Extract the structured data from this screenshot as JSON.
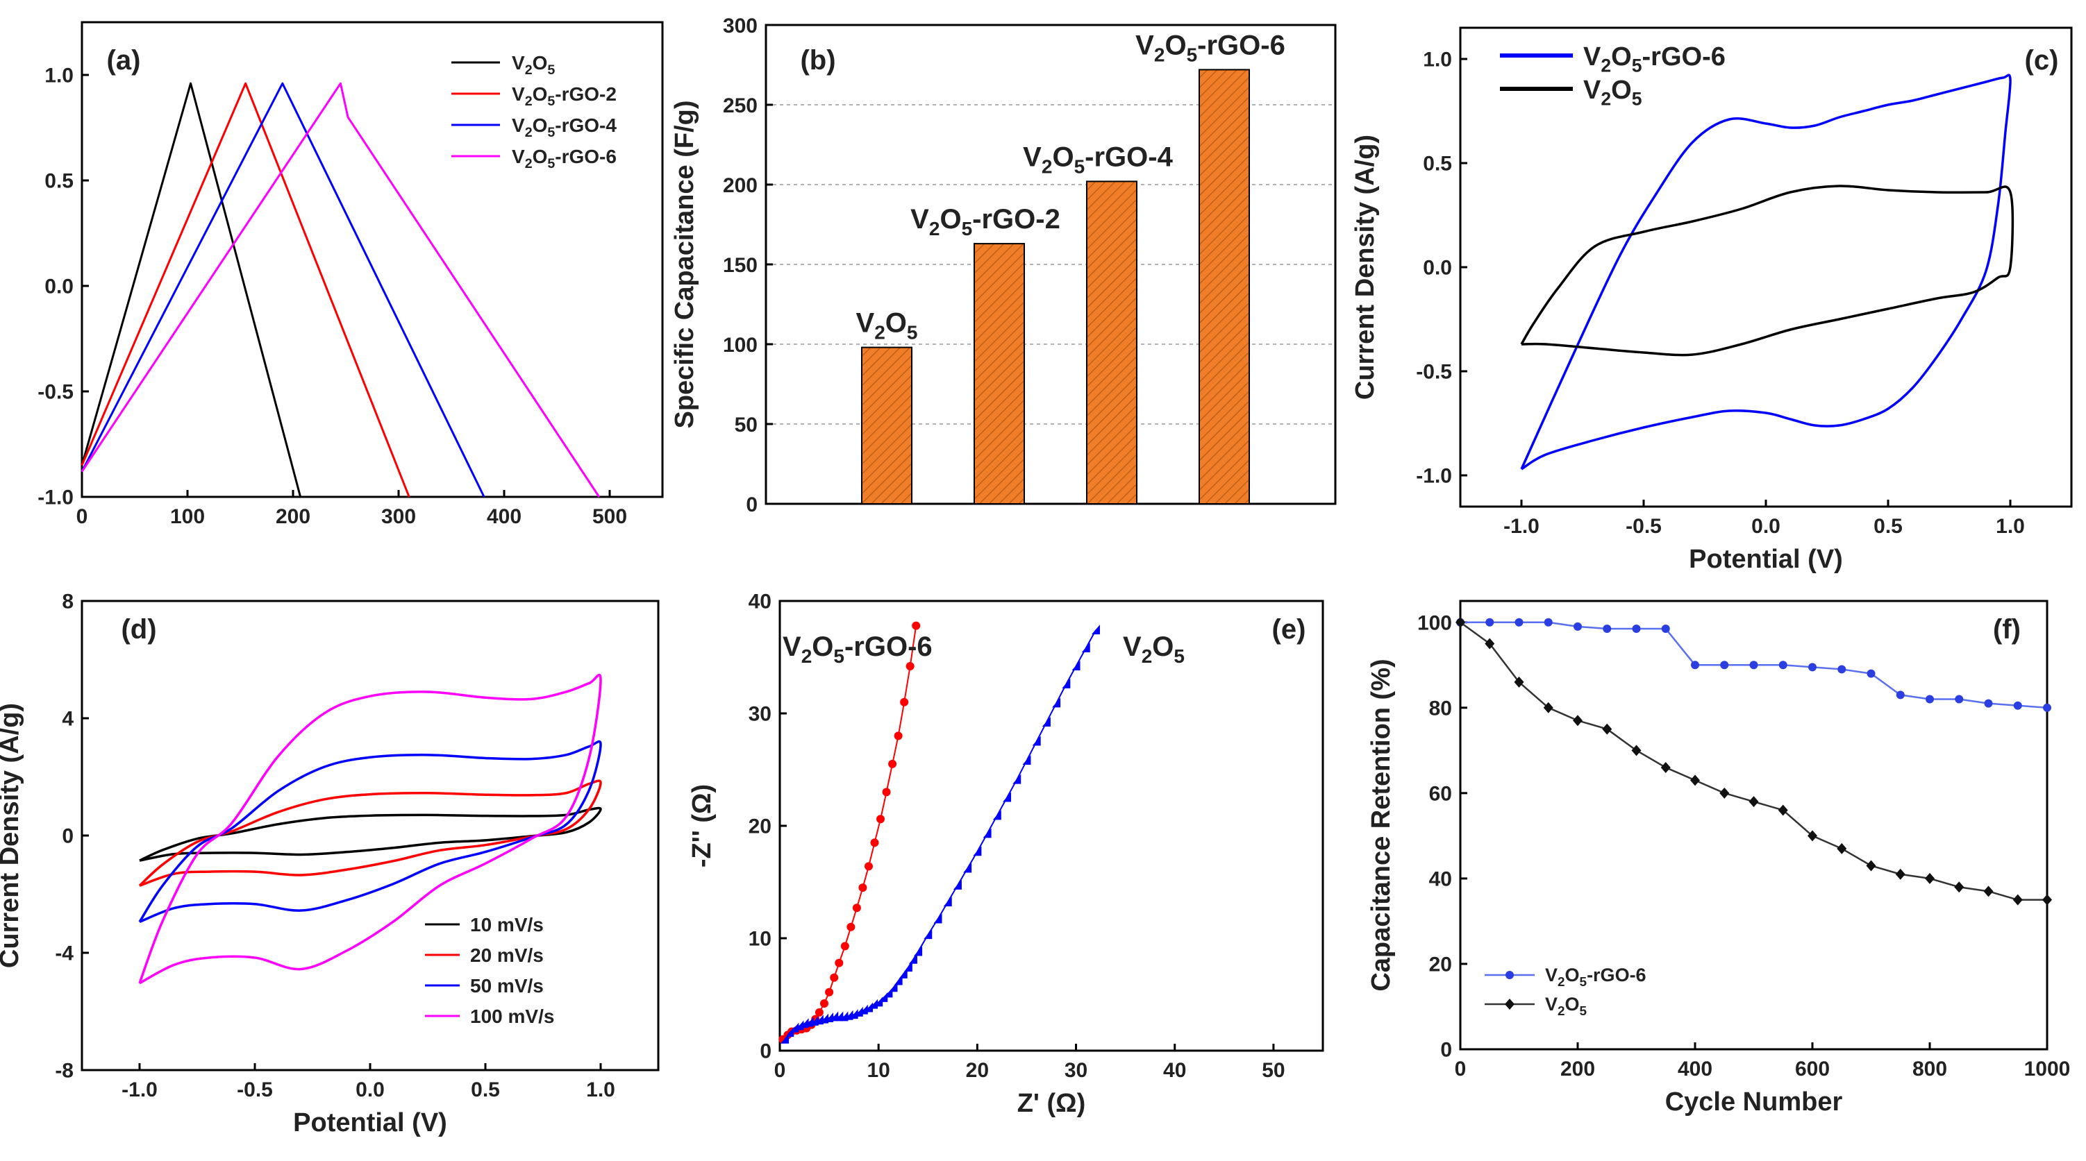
{
  "chart_data": [
    {
      "panel": "a",
      "type": "line",
      "panel_label": "(a)",
      "xlim": [
        0,
        550
      ],
      "ylim": [
        -1.0,
        1.25
      ],
      "xticks": [
        0,
        100,
        200,
        300,
        400,
        500
      ],
      "yticks": [
        -1.0,
        -0.5,
        0.0,
        0.5,
        1.0
      ],
      "xlabel": "",
      "ylabel": "",
      "legend_position": "top-right",
      "series": [
        {
          "label": "V2O5",
          "color": "#000000",
          "x": [
            0,
            103,
            207
          ],
          "y": [
            -0.85,
            0.96,
            -1.0
          ]
        },
        {
          "label": "V2O5-rGO-2",
          "color": "#ff0000",
          "x": [
            0,
            155,
            310
          ],
          "y": [
            -0.85,
            0.96,
            -1.0
          ]
        },
        {
          "label": "V2O5-rGO-4",
          "color": "#0000ff",
          "x": [
            0,
            190,
            381
          ],
          "y": [
            -0.88,
            0.96,
            -1.0
          ]
        },
        {
          "label": "V2O5-rGO-6",
          "color": "#ff00ff",
          "x": [
            0,
            245,
            252,
            490
          ],
          "y": [
            -0.88,
            0.96,
            0.8,
            -1.0
          ]
        }
      ]
    },
    {
      "panel": "b",
      "type": "bar",
      "panel_label": "(b)",
      "categories": [
        "V2O5",
        "V2O5-rGO-2",
        "V2O5-rGO-4",
        "V2O5-rGO-6"
      ],
      "values": [
        98,
        163,
        202,
        272
      ],
      "ylim": [
        0,
        300
      ],
      "yticks": [
        0,
        50,
        100,
        150,
        200,
        250,
        300
      ],
      "ylabel": "Specific Capacitance (F/g)",
      "bar_color": "#f07d28"
    },
    {
      "panel": "c",
      "type": "line",
      "panel_label": "(c)",
      "xlim": [
        -1.25,
        1.25
      ],
      "ylim": [
        -1.15,
        1.15
      ],
      "xticks": [
        -1.0,
        -0.5,
        0.0,
        0.5,
        1.0
      ],
      "yticks": [
        -1.0,
        -0.5,
        0.0,
        0.5,
        1.0
      ],
      "xlabel": "Potential (V)",
      "ylabel": "Current Density (A/g)",
      "legend_position": "top-left",
      "series": [
        {
          "label": "V2O5-rGO-6",
          "color": "#0000ff",
          "x": [
            -1.0,
            -0.8,
            -0.6,
            -0.45,
            -0.3,
            -0.15,
            0.0,
            0.1,
            0.2,
            0.3,
            0.4,
            0.5,
            0.6,
            0.7,
            0.8,
            0.9,
            0.97,
            1.0,
            0.98,
            0.95,
            0.9,
            0.8,
            0.7,
            0.6,
            0.5,
            0.4,
            0.3,
            0.2,
            0.1,
            0.0,
            -0.15,
            -0.3,
            -0.5,
            -0.7,
            -0.9,
            -1.0
          ],
          "y": [
            -0.97,
            -0.45,
            0.05,
            0.35,
            0.6,
            0.71,
            0.69,
            0.67,
            0.68,
            0.72,
            0.75,
            0.78,
            0.8,
            0.83,
            0.86,
            0.89,
            0.91,
            0.9,
            0.65,
            0.3,
            -0.02,
            -0.25,
            -0.43,
            -0.58,
            -0.68,
            -0.73,
            -0.76,
            -0.76,
            -0.73,
            -0.7,
            -0.69,
            -0.72,
            -0.77,
            -0.83,
            -0.9,
            -0.97
          ]
        },
        {
          "label": "V2O5",
          "color": "#000000",
          "x": [
            -1.0,
            -0.95,
            -0.85,
            -0.7,
            -0.5,
            -0.3,
            -0.1,
            0.1,
            0.3,
            0.5,
            0.7,
            0.9,
            1.0,
            1.0,
            0.95,
            0.85,
            0.7,
            0.5,
            0.3,
            0.1,
            -0.1,
            -0.3,
            -0.5,
            -0.7,
            -0.9,
            -1.0
          ],
          "y": [
            -0.37,
            -0.27,
            -0.1,
            0.1,
            0.17,
            0.22,
            0.28,
            0.36,
            0.39,
            0.37,
            0.36,
            0.36,
            0.36,
            0.0,
            -0.05,
            -0.12,
            -0.15,
            -0.2,
            -0.25,
            -0.3,
            -0.37,
            -0.42,
            -0.41,
            -0.39,
            -0.37,
            -0.37
          ]
        }
      ]
    },
    {
      "panel": "d",
      "type": "line",
      "panel_label": "(d)",
      "xlim": [
        -1.25,
        1.25
      ],
      "ylim": [
        -8,
        8
      ],
      "xticks": [
        -1.0,
        -0.5,
        0.0,
        0.5,
        1.0
      ],
      "yticks": [
        -8,
        -4,
        0,
        4,
        8
      ],
      "xlabel": "Potential (V)",
      "ylabel": "Current Density (A/g)",
      "legend_position": "bottom-right",
      "series": [
        {
          "label": "10 mV/s",
          "color": "#000000",
          "amp": 0.9,
          "plateau": 0.7
        },
        {
          "label": "20 mV/s",
          "color": "#ff0000",
          "amp": 1.8,
          "plateau": 1.45
        },
        {
          "label": "50 mV/s",
          "color": "#0000ff",
          "amp": 3.1,
          "plateau": 2.75
        },
        {
          "label": "100 mV/s",
          "color": "#ff00ff",
          "amp": 5.3,
          "plateau": 4.9
        }
      ]
    },
    {
      "panel": "e",
      "type": "scatter",
      "panel_label": "(e)",
      "xlim": [
        0,
        55
      ],
      "ylim": [
        0,
        40
      ],
      "xticks": [
        0,
        10,
        20,
        30,
        40,
        50
      ],
      "yticks": [
        0,
        10,
        20,
        30,
        40
      ],
      "xlabel": "Z' (Ω)",
      "ylabel": "-Z'' (Ω)",
      "series": [
        {
          "label": "V2O5-rGO-6",
          "color": "#ff0000",
          "marker": "circle",
          "x": [
            0.3,
            0.8,
            1.2,
            1.7,
            2.2,
            2.7,
            3.2,
            3.6,
            4.0,
            4.5,
            5.0,
            5.5,
            6.0,
            6.6,
            7.2,
            7.8,
            8.4,
            9.0,
            9.6,
            10.2,
            10.8,
            11.4,
            12.0,
            12.6,
            13.2,
            13.8
          ],
          "y": [
            1.0,
            1.4,
            1.7,
            1.8,
            1.9,
            2.0,
            2.3,
            2.8,
            3.4,
            4.2,
            5.2,
            6.5,
            7.8,
            9.3,
            11.0,
            12.7,
            14.5,
            16.4,
            18.5,
            20.6,
            23.0,
            25.5,
            28.0,
            31.0,
            34.2,
            37.8
          ]
        },
        {
          "label": "V2O5",
          "color": "#0000ff",
          "marker": "triangle",
          "x": [
            0.5,
            1.0,
            1.5,
            2.0,
            2.5,
            3.0,
            3.5,
            4.0,
            4.5,
            5.0,
            5.5,
            6.0,
            6.5,
            7.0,
            7.5,
            8.0,
            8.5,
            9.0,
            9.5,
            10.0,
            10.5,
            11.0,
            11.5,
            12.0,
            12.5,
            13.0,
            13.5,
            14.0,
            15.0,
            16.0,
            17.0,
            18.0,
            19.0,
            20.0,
            21.0,
            22.0,
            23.0,
            24.0,
            25.0,
            26.0,
            27.0,
            28.0,
            29.0,
            30.0,
            31.0,
            32.0
          ],
          "y": [
            1.0,
            1.6,
            2.0,
            2.2,
            2.4,
            2.5,
            2.6,
            2.7,
            2.8,
            2.9,
            3.0,
            3.0,
            3.0,
            3.1,
            3.2,
            3.4,
            3.6,
            3.8,
            4.1,
            4.3,
            4.7,
            5.1,
            5.6,
            6.2,
            6.8,
            7.4,
            8.1,
            8.8,
            10.3,
            11.7,
            13.2,
            14.7,
            16.2,
            17.7,
            19.3,
            20.9,
            22.5,
            24.1,
            25.8,
            27.5,
            29.2,
            30.9,
            32.6,
            34.2,
            35.8,
            37.4
          ]
        }
      ]
    },
    {
      "panel": "f",
      "type": "line",
      "panel_label": "(f)",
      "xlim": [
        0,
        1000
      ],
      "ylim": [
        0,
        105
      ],
      "xticks": [
        0,
        200,
        400,
        600,
        800,
        1000
      ],
      "yticks": [
        0,
        20,
        40,
        60,
        80,
        100
      ],
      "xlabel": "Cycle Number",
      "ylabel": "Capacitance Retention (%)",
      "legend_position": "bottom-left",
      "series": [
        {
          "label": "V2O5-rGO-6",
          "color": "#5a6ff0",
          "marker": "circle",
          "x": [
            0,
            50,
            100,
            150,
            200,
            250,
            300,
            350,
            400,
            450,
            500,
            550,
            600,
            650,
            700,
            750,
            800,
            850,
            900,
            950,
            1000
          ],
          "y": [
            100,
            100,
            100,
            100,
            99,
            98.5,
            98.5,
            98.5,
            90,
            90,
            90,
            90,
            89.5,
            89,
            88,
            83,
            82,
            82,
            81,
            80.5,
            80
          ]
        },
        {
          "label": "V2O5",
          "color": "#333333",
          "marker": "diamond",
          "x": [
            0,
            50,
            100,
            150,
            200,
            250,
            300,
            350,
            400,
            450,
            500,
            550,
            600,
            650,
            700,
            750,
            800,
            850,
            900,
            950,
            1000
          ],
          "y": [
            100,
            95,
            86,
            80,
            77,
            75,
            70,
            66,
            63,
            60,
            58,
            56,
            50,
            47,
            43,
            41,
            40,
            38,
            37,
            35,
            35
          ]
        }
      ]
    }
  ]
}
